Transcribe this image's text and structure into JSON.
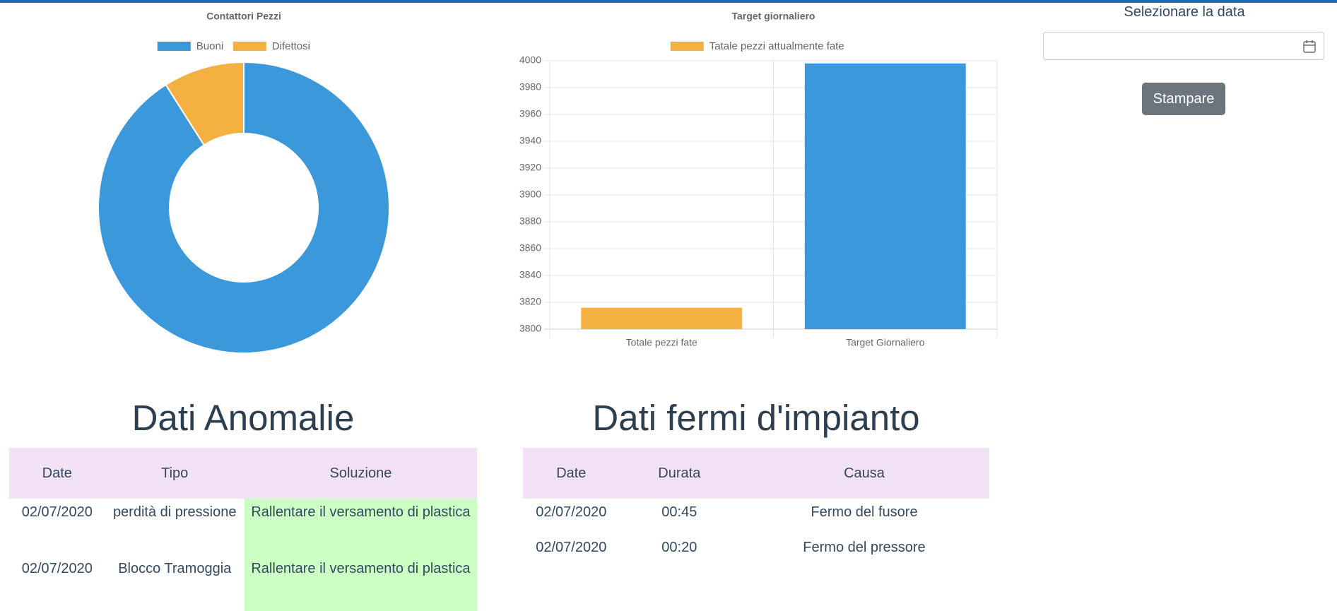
{
  "chart_data": [
    {
      "type": "doughnut",
      "title": "Contattori Pezzi",
      "categories": [
        "Buoni",
        "Difettosi"
      ],
      "values": [
        91,
        9
      ],
      "colors": [
        "#3a98db",
        "#f5b042"
      ]
    },
    {
      "type": "bar",
      "title": "Target giornaliero",
      "categories": [
        "Totale pezzi fate",
        "Target Giornaliero"
      ],
      "series": [
        {
          "name": "Tatale pezzi attualmente fate",
          "color": "#f5b042",
          "values": [
            3816,
            3998
          ]
        }
      ],
      "bar_colors": [
        "#f5b042",
        "#3a98db"
      ],
      "ylim": [
        3800,
        4000
      ],
      "yticks": [
        3800,
        3820,
        3840,
        3860,
        3880,
        3900,
        3920,
        3940,
        3960,
        3980,
        4000
      ],
      "grid": true
    }
  ],
  "date_picker": {
    "label": "Selezionare la data"
  },
  "button": "Stampare",
  "tables": [
    {
      "title": "Dati Anomalie",
      "columns": [
        "Date",
        "Tipo",
        "Soluzione"
      ],
      "rows": [
        [
          "02/07/2020",
          "perdità di pressione",
          "Rallentare il versamento di plastica"
        ],
        [
          "02/07/2020",
          "Blocco Tramoggia",
          "Rallentare il versamento di plastica"
        ]
      ]
    },
    {
      "title": "Dati fermi d'impianto",
      "columns": [
        "Date",
        "Durata",
        "Causa"
      ],
      "rows": [
        [
          "02/07/2020",
          "00:45",
          "Fermo del fusore"
        ],
        [
          "02/07/2020",
          "00:20",
          "Fermo del pressore"
        ]
      ]
    }
  ]
}
